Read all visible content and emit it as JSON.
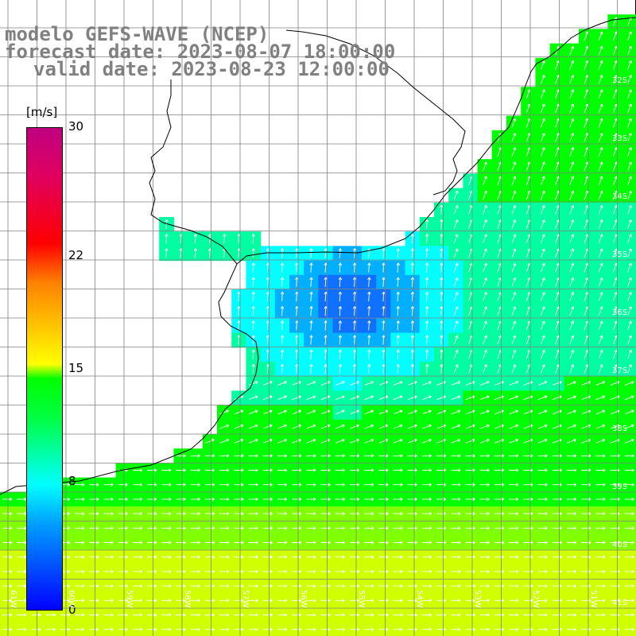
{
  "title": {
    "line1": "modelo GEFS-WAVE (NCEP)",
    "line2": "forecast date: 2023-08-07 18:00:00",
    "line3": "valid date: 2023-08-23 12:00:00"
  },
  "colorbar": {
    "unit": "[m/s]",
    "ticks": [
      {
        "label": "30",
        "value": 30
      },
      {
        "label": "22",
        "value": 22
      },
      {
        "label": "15",
        "value": 15
      },
      {
        "label": "8",
        "value": 8
      },
      {
        "label": "0",
        "value": 0
      }
    ],
    "min": 0,
    "max": 30
  },
  "map": {
    "lat_labels": [
      "32S",
      "33S",
      "34S",
      "35S",
      "36S",
      "37S",
      "38S",
      "39S",
      "40S",
      "41S"
    ],
    "lon_labels": [
      "61W",
      "60W",
      "59W",
      "58W",
      "57W",
      "56W",
      "55W",
      "54W",
      "53W",
      "52W",
      "51W"
    ],
    "colors": {
      "low": "#1060ff",
      "mid": "#00ffff",
      "high": "#00ff00",
      "peak": "#e0ff00",
      "land": "#ffffff",
      "grid": "#808080",
      "coast": "#000000",
      "arrow": "#ffffff"
    }
  }
}
